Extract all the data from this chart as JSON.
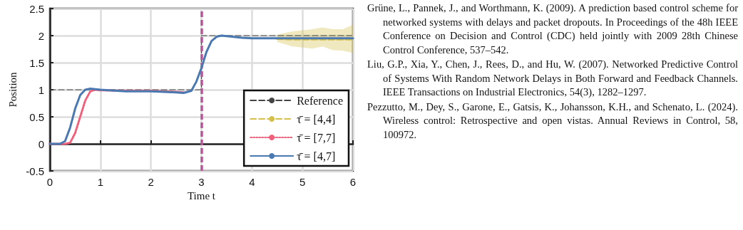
{
  "chart_data": {
    "type": "line",
    "xlabel": "Time t",
    "ylabel": "Position",
    "xlim": [
      0,
      6
    ],
    "xticks": [
      0,
      1,
      2,
      3,
      4,
      5,
      6
    ],
    "ylim": [
      -0.5,
      2.5
    ],
    "yticks": [
      -0.5,
      0,
      0.5,
      1,
      1.5,
      2,
      2.5
    ],
    "grid": true,
    "legend": "bottom right",
    "marker": "none",
    "series": [
      {
        "name": "Reference",
        "type": "step",
        "color": "#444444",
        "line_style": "dashed",
        "x": [
          0,
          3,
          6
        ],
        "values": [
          1,
          2,
          2
        ]
      },
      {
        "name": "τ̄ = [4,4]",
        "color": "#d4bf4a",
        "line_style": "dashed",
        "x": [
          4.5,
          4.8,
          5,
          5.2,
          5.4,
          5.6,
          5.8,
          6
        ],
        "values": [
          1.94,
          1.93,
          1.93,
          1.93,
          1.93,
          1.93,
          1.93,
          1.93
        ],
        "lower": [
          1.88,
          1.8,
          1.78,
          1.76,
          1.8,
          1.73,
          1.72,
          1.68
        ],
        "upper": [
          2.02,
          2.08,
          2.1,
          2.12,
          2.15,
          2.12,
          2.12,
          2.2
        ]
      },
      {
        "name": "τ̄ = [7,7]",
        "color": "#f0607a",
        "line_style": "dotted",
        "x": [
          0,
          0.3,
          0.4,
          0.5,
          0.6,
          0.7,
          0.8,
          0.9,
          1.0,
          1.5,
          2,
          2.5,
          2.65
        ],
        "values": [
          0,
          0,
          0.02,
          0.2,
          0.5,
          0.8,
          0.97,
          1.0,
          0.99,
          0.98,
          0.98,
          0.96,
          0.95
        ]
      },
      {
        "name": "τ̄ = [4,7]",
        "color": "#4a78b0",
        "line_style": "solid",
        "x": [
          0,
          0.2,
          0.3,
          0.4,
          0.5,
          0.6,
          0.7,
          0.8,
          1.0,
          1.5,
          2,
          2.5,
          2.65,
          2.8,
          2.9,
          3.0,
          3.1,
          3.2,
          3.3,
          3.4,
          3.6,
          3.8,
          4,
          5,
          6
        ],
        "values": [
          0,
          0,
          0.05,
          0.3,
          0.65,
          0.9,
          1.0,
          1.02,
          1.0,
          0.97,
          0.97,
          0.95,
          0.94,
          0.98,
          1.15,
          1.4,
          1.7,
          1.9,
          1.98,
          2.0,
          1.98,
          1.96,
          1.95,
          1.95,
          1.95
        ]
      }
    ],
    "ref_lines": [
      {
        "axis": "x",
        "value": 3,
        "label": null,
        "color": "#b5589a",
        "line_style": "dashed"
      }
    ],
    "annotations": [
      "Grüne, L., Pannek, J., and Worthmann, K. (2009). A prediction based control scheme for networked systems with delays and packet dropouts. In Proceedings of the 48h IEEE Conference on Decision and Control (CDC) held jointly with 2009 28th Chinese Control Conference, 537–542.",
      "Liu, G.P., Xia, Y., Chen, J., Rees, D., and Hu, W. (2007). Networked Predictive Control of Systems With Random Network Delays in Both Forward and Feedback Channels. IEEE Transactions on Industrial Electronics, 54(3), 1282–1297.",
      "Pezzutto, M., Dey, S., Garone, E., Gatsis, K., Johansson, K.H., and Schenato, L. (2024). Wireless control: Retrospective and open vistas. Annual Reviews in Control, 58, 100972."
    ]
  }
}
